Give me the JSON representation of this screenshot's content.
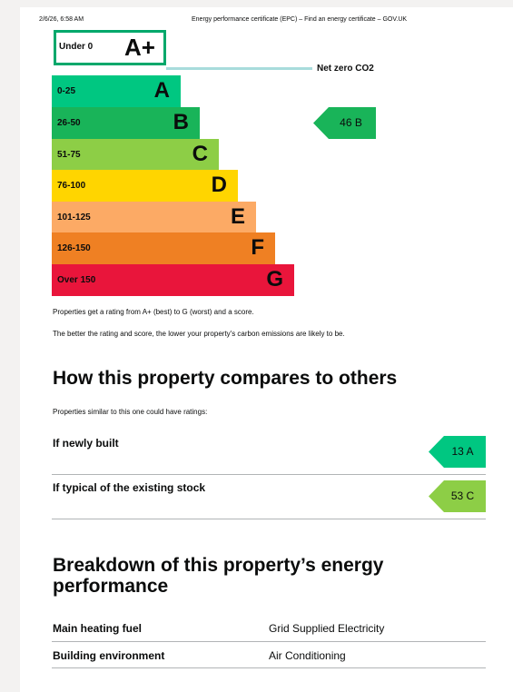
{
  "header": {
    "date": "2/6/26, 6:58 AM",
    "title": "Energy performance certificate (EPC) – Find an energy certificate – GOV.UK"
  },
  "top_band": {
    "range": "Under 0",
    "letter": "A+",
    "color": "#00a86b"
  },
  "net_zero": {
    "label": "Net zero CO2",
    "line_color": "#a8dcdc"
  },
  "bands": [
    {
      "range": "0-25",
      "letter": "A",
      "color": "#00c781"
    },
    {
      "range": "26-50",
      "letter": "B",
      "color": "#19b459"
    },
    {
      "range": "51-75",
      "letter": "C",
      "color": "#8dce46"
    },
    {
      "range": "76-100",
      "letter": "D",
      "color": "#ffd500"
    },
    {
      "range": "101-125",
      "letter": "E",
      "color": "#fcaa65"
    },
    {
      "range": "126-150",
      "letter": "F",
      "color": "#ef8023"
    },
    {
      "range": "Over 150",
      "letter": "G",
      "color": "#e9153b"
    }
  ],
  "current_rating": {
    "text": "46  B",
    "color": "#19b459"
  },
  "explanation": {
    "line1": "Properties get a rating from A+ (best) to G (worst) and a score.",
    "line2": "The better the rating and score, the lower your property's carbon emissions are likely to be."
  },
  "compare": {
    "heading": "How this property compares to others",
    "intro": "Properties similar to this one could have ratings:",
    "rows": [
      {
        "label": "If newly built",
        "rating": "13  A",
        "color": "#00c781"
      },
      {
        "label": "If typical of the existing stock",
        "rating": "53  C",
        "color": "#8dce46"
      }
    ]
  },
  "breakdown": {
    "heading_line1": "Breakdown of this property’s energy",
    "heading_line2": "performance",
    "rows": [
      {
        "label": "Main heating fuel",
        "value": "Grid Supplied Electricity"
      },
      {
        "label": "Building environment",
        "value": "Air Conditioning"
      }
    ]
  }
}
